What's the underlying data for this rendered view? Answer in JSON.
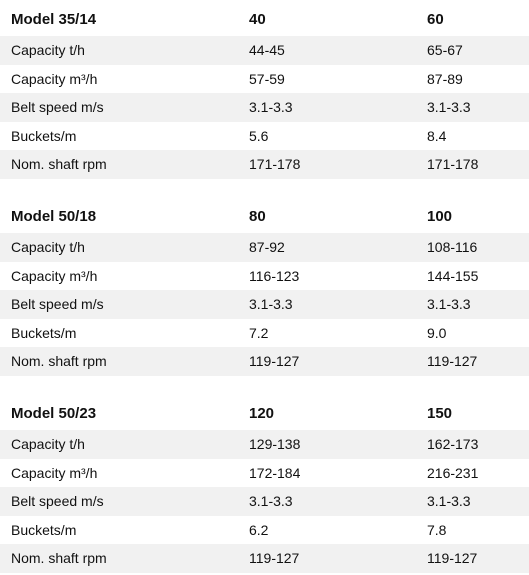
{
  "tables": [
    {
      "model": "Model 35/14",
      "variants": [
        "40",
        "60"
      ],
      "rows": [
        {
          "label": "Capacity t/h",
          "values": [
            "44-45",
            "65-67"
          ]
        },
        {
          "label": "Capacity m³/h",
          "values": [
            "57-59",
            "87-89"
          ]
        },
        {
          "label": "Belt speed m/s",
          "values": [
            "3.1-3.3",
            "3.1-3.3"
          ]
        },
        {
          "label": "Buckets/m",
          "values": [
            "5.6",
            "8.4"
          ]
        },
        {
          "label": "Nom. shaft rpm",
          "values": [
            "171-178",
            "171-178"
          ]
        }
      ]
    },
    {
      "model": "Model 50/18",
      "variants": [
        "80",
        "100"
      ],
      "rows": [
        {
          "label": "Capacity t/h",
          "values": [
            "87-92",
            "108-116"
          ]
        },
        {
          "label": "Capacity m³/h",
          "values": [
            "116-123",
            "144-155"
          ]
        },
        {
          "label": "Belt speed m/s",
          "values": [
            "3.1-3.3",
            "3.1-3.3"
          ]
        },
        {
          "label": "Buckets/m",
          "values": [
            "7.2",
            "9.0"
          ]
        },
        {
          "label": "Nom. shaft rpm",
          "values": [
            "119-127",
            "119-127"
          ]
        }
      ]
    },
    {
      "model": "Model 50/23",
      "variants": [
        "120",
        "150"
      ],
      "rows": [
        {
          "label": "Capacity t/h",
          "values": [
            "129-138",
            "162-173"
          ]
        },
        {
          "label": "Capacity m³/h",
          "values": [
            "172-184",
            "216-231"
          ]
        },
        {
          "label": "Belt speed m/s",
          "values": [
            "3.1-3.3",
            "3.1-3.3"
          ]
        },
        {
          "label": "Buckets/m",
          "values": [
            "6.2",
            "7.8"
          ]
        },
        {
          "label": "Nom. shaft rpm",
          "values": [
            "119-127",
            "119-127"
          ]
        }
      ]
    }
  ]
}
